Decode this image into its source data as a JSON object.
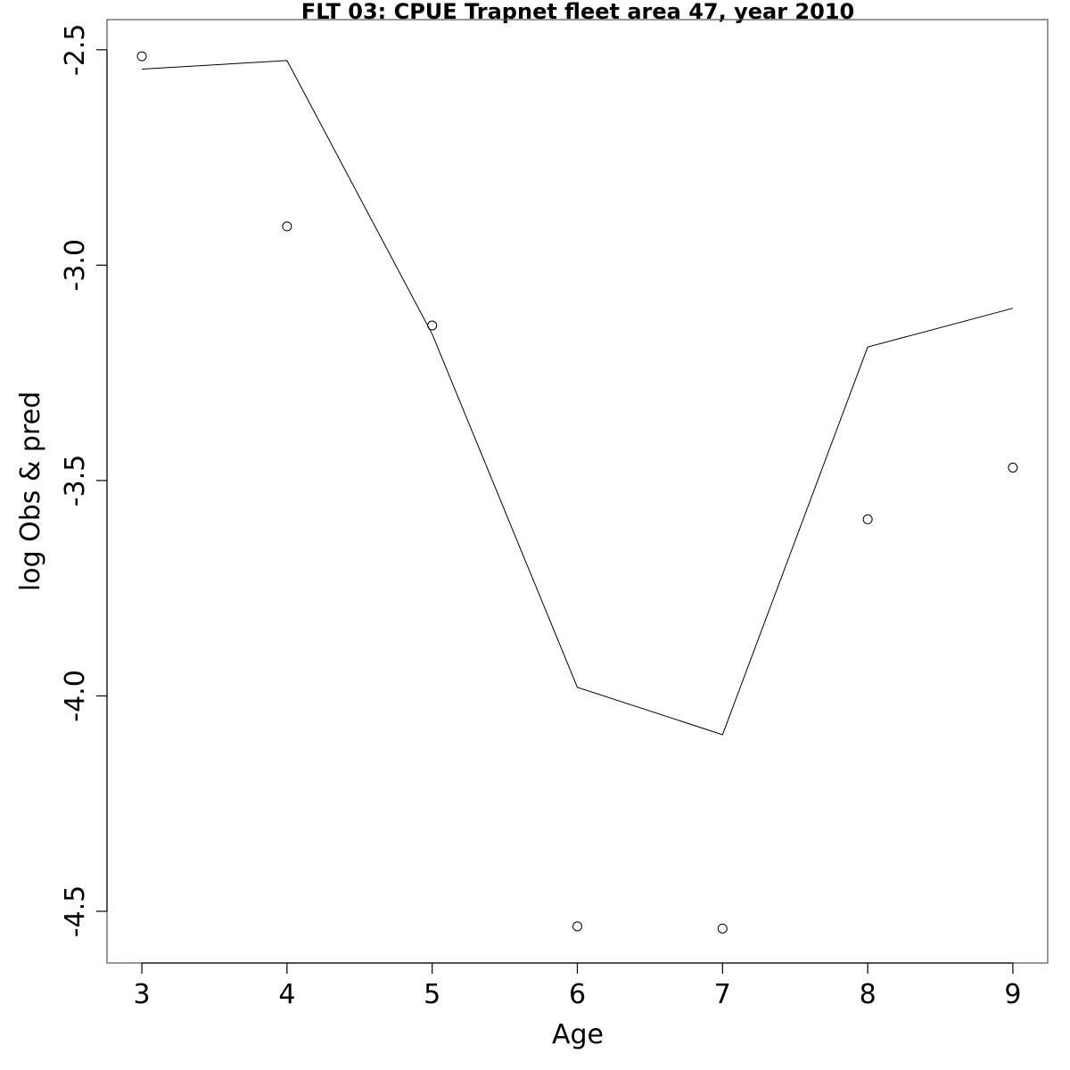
{
  "chart_data": {
    "type": "line",
    "title": "FLT 03: CPUE Trapnet fleet area 47, year 2010",
    "xlabel": "Age",
    "ylabel": "log Obs & pred",
    "xlim": [
      2.76,
      9.24
    ],
    "ylim": [
      -4.62,
      -2.43
    ],
    "x_ticks": [
      3,
      4,
      5,
      6,
      7,
      8,
      9
    ],
    "x_tick_labels": [
      "3",
      "4",
      "5",
      "6",
      "7",
      "8",
      "9"
    ],
    "y_ticks": [
      -2.5,
      -3.0,
      -3.5,
      -4.0,
      -4.5
    ],
    "y_tick_labels": [
      "-2.5",
      "-3.0",
      "-3.5",
      "-4.0",
      "-4.5"
    ],
    "grid": false,
    "series": [
      {
        "style": "line",
        "x": [
          3,
          4,
          5,
          6,
          7,
          8,
          9
        ],
        "values": [
          -2.545,
          -2.525,
          -3.16,
          -3.98,
          -4.09,
          -3.19,
          -3.1
        ]
      },
      {
        "style": "points",
        "x": [
          3,
          4,
          5,
          6,
          7,
          8,
          9
        ],
        "values": [
          -2.515,
          -2.91,
          -3.14,
          -4.535,
          -4.54,
          -3.59,
          -3.47
        ]
      }
    ]
  }
}
